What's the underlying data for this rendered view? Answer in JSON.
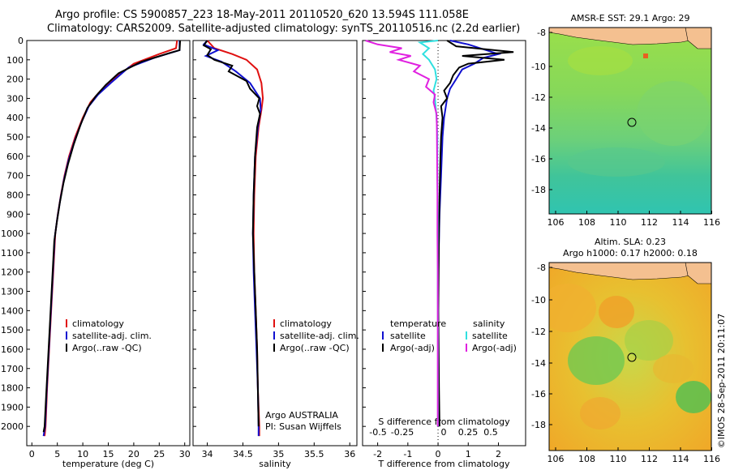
{
  "header": {
    "line1": "Argo profile: CS 5900857_223 18-May-2011 20110520_620 13.594S 111.058E",
    "line2": "Climatology: CARS2009. Satellite-adjusted climatology: synTS_20110516.nc (2.2d earlier)"
  },
  "colors": {
    "climatology": "#e01010",
    "satellite": "#1010d0",
    "argo": "#000000",
    "sal_sat": "#30e0e0",
    "sal_argo": "#e020e0"
  },
  "chart_data": [
    {
      "type": "line",
      "name": "temperature-profile",
      "xlabel": "temperature (deg C)",
      "ylabel": "",
      "xlim": [
        -1,
        31
      ],
      "ylim": [
        2100,
        0
      ],
      "xticks": [
        0,
        5,
        10,
        15,
        20,
        25,
        30
      ],
      "yticks": [
        0,
        100,
        200,
        300,
        400,
        500,
        600,
        700,
        800,
        900,
        1000,
        1100,
        1200,
        1300,
        1400,
        1500,
        1600,
        1700,
        1800,
        1900,
        2000
      ],
      "legend": [
        "climatology",
        "satellite-adj. clim.",
        "Argo(..raw -QC)"
      ],
      "series": [
        {
          "name": "climatology",
          "points": [
            [
              28.5,
              0
            ],
            [
              28.3,
              40
            ],
            [
              25,
              70
            ],
            [
              20,
              120
            ],
            [
              16,
              200
            ],
            [
              13.5,
              260
            ],
            [
              11.5,
              320
            ],
            [
              10,
              400
            ],
            [
              8.5,
              500
            ],
            [
              7.3,
              600
            ],
            [
              6.4,
              700
            ],
            [
              5.7,
              800
            ],
            [
              5.1,
              900
            ],
            [
              4.6,
              1000
            ],
            [
              4.2,
              1200
            ],
            [
              3.8,
              1400
            ],
            [
              3.4,
              1600
            ],
            [
              3,
              1800
            ],
            [
              2.7,
              2000
            ],
            [
              2.5,
              2050
            ]
          ]
        },
        {
          "name": "satellite",
          "points": [
            [
              29.0,
              0
            ],
            [
              29.0,
              50
            ],
            [
              24,
              90
            ],
            [
              19,
              140
            ],
            [
              15.5,
              220
            ],
            [
              13,
              280
            ],
            [
              11.2,
              340
            ],
            [
              9.8,
              420
            ],
            [
              8.4,
              520
            ],
            [
              7.2,
              620
            ],
            [
              6.3,
              720
            ],
            [
              5.6,
              820
            ],
            [
              5.0,
              920
            ],
            [
              4.5,
              1020
            ],
            [
              4.1,
              1220
            ],
            [
              3.7,
              1420
            ],
            [
              3.3,
              1620
            ],
            [
              2.9,
              1820
            ],
            [
              2.6,
              2000
            ],
            [
              2.3,
              2050
            ]
          ]
        },
        {
          "name": "argo",
          "points": [
            [
              29.1,
              0
            ],
            [
              29.0,
              50
            ],
            [
              27,
              65
            ],
            [
              21.5,
              110
            ],
            [
              17,
              170
            ],
            [
              14.5,
              230
            ],
            [
              12.5,
              290
            ],
            [
              10.9,
              350
            ],
            [
              9.5,
              440
            ],
            [
              8.2,
              540
            ],
            [
              7.1,
              640
            ],
            [
              6.2,
              740
            ],
            [
              5.5,
              840
            ],
            [
              4.9,
              940
            ],
            [
              4.4,
              1040
            ],
            [
              4.0,
              1240
            ],
            [
              3.6,
              1440
            ],
            [
              3.2,
              1640
            ],
            [
              2.8,
              1840
            ],
            [
              2.5,
              2000
            ],
            [
              2.3,
              2030
            ]
          ]
        }
      ]
    },
    {
      "type": "line",
      "name": "salinity-profile",
      "xlabel": "salinity",
      "ylabel": "",
      "xlim": [
        33.8,
        36.1
      ],
      "ylim": [
        2100,
        0
      ],
      "xticks": [
        34,
        34.5,
        35,
        35.5,
        36
      ],
      "legend": [
        "climatology",
        "satellite-adj. clim.",
        "Argo(..raw -QC)"
      ],
      "annotation": [
        "Argo AUSTRALIA",
        "PI: Susan Wijffels"
      ],
      "series": [
        {
          "name": "climatology",
          "points": [
            [
              34.0,
              0
            ],
            [
              34.1,
              40
            ],
            [
              34.35,
              70
            ],
            [
              34.55,
              100
            ],
            [
              34.7,
              150
            ],
            [
              34.76,
              220
            ],
            [
              34.78,
              300
            ],
            [
              34.76,
              360
            ],
            [
              34.72,
              450
            ],
            [
              34.68,
              600
            ],
            [
              34.66,
              800
            ],
            [
              34.65,
              1000
            ],
            [
              34.66,
              1200
            ],
            [
              34.68,
              1400
            ],
            [
              34.7,
              1600
            ],
            [
              34.71,
              1800
            ],
            [
              34.73,
              2000
            ],
            [
              34.73,
              2050
            ]
          ]
        },
        {
          "name": "satellite",
          "points": [
            [
              34.0,
              0
            ],
            [
              33.95,
              20
            ],
            [
              34.15,
              50
            ],
            [
              33.98,
              80
            ],
            [
              34.2,
              110
            ],
            [
              34.4,
              160
            ],
            [
              34.6,
              220
            ],
            [
              34.74,
              300
            ],
            [
              34.75,
              360
            ],
            [
              34.71,
              450
            ],
            [
              34.67,
              600
            ],
            [
              34.65,
              800
            ],
            [
              34.64,
              1000
            ],
            [
              34.65,
              1200
            ],
            [
              34.67,
              1400
            ],
            [
              34.69,
              1600
            ],
            [
              34.71,
              1800
            ],
            [
              34.72,
              2000
            ],
            [
              34.72,
              2050
            ]
          ]
        },
        {
          "name": "argo",
          "points": [
            [
              34.0,
              0
            ],
            [
              33.95,
              25
            ],
            [
              34.05,
              45
            ],
            [
              34.0,
              75
            ],
            [
              34.1,
              100
            ],
            [
              34.35,
              130
            ],
            [
              34.3,
              160
            ],
            [
              34.55,
              210
            ],
            [
              34.6,
              250
            ],
            [
              34.73,
              300
            ],
            [
              34.7,
              340
            ],
            [
              34.74,
              380
            ],
            [
              34.7,
              450
            ],
            [
              34.67,
              600
            ],
            [
              34.65,
              800
            ],
            [
              34.64,
              1000
            ],
            [
              34.66,
              1200
            ],
            [
              34.68,
              1400
            ],
            [
              34.7,
              1600
            ],
            [
              34.71,
              1800
            ],
            [
              34.72,
              2000
            ]
          ]
        }
      ]
    },
    {
      "type": "line",
      "name": "difference-profile",
      "xlabel": "T difference from climatology",
      "top_xlabel": "S difference from climatology",
      "xlim": [
        -2.5,
        2.9
      ],
      "ylim": [
        2100,
        0
      ],
      "xticks": [
        -2,
        -1,
        0,
        1,
        2
      ],
      "top_xticks": [
        -0.5,
        -0.25,
        0,
        0.25,
        0.5
      ],
      "top_xtick_labels": [
        "-0.5",
        "-0.25",
        "0",
        "0.25",
        "0.5"
      ],
      "legend_temperature": [
        "temperature",
        "satellite",
        "Argo(-adj)"
      ],
      "legend_salinity": [
        "salinity",
        "satellite",
        "Argo(-adj)"
      ],
      "series": [
        {
          "name": "temperature satellite",
          "points": [
            [
              0.4,
              0
            ],
            [
              1.0,
              20
            ],
            [
              2.0,
              70
            ],
            [
              1.5,
              90
            ],
            [
              1.2,
              120
            ],
            [
              0.8,
              150
            ],
            [
              0.6,
              200
            ],
            [
              0.4,
              250
            ],
            [
              0.3,
              300
            ],
            [
              0.2,
              400
            ],
            [
              0.15,
              500
            ],
            [
              0.1,
              700
            ],
            [
              0.05,
              900
            ],
            [
              0.02,
              1100
            ],
            [
              0.0,
              1300
            ],
            [
              0.0,
              1500
            ],
            [
              0.01,
              1700
            ],
            [
              0.02,
              1900
            ],
            [
              0.02,
              2000
            ]
          ]
        },
        {
          "name": "temperature argo",
          "points": [
            [
              0.3,
              0
            ],
            [
              0.6,
              30
            ],
            [
              2.5,
              60
            ],
            [
              0.8,
              80
            ],
            [
              2.2,
              100
            ],
            [
              1.0,
              120
            ],
            [
              0.7,
              140
            ],
            [
              0.5,
              180
            ],
            [
              0.4,
              220
            ],
            [
              0.2,
              260
            ],
            [
              0.3,
              300
            ],
            [
              0.1,
              340
            ],
            [
              0.15,
              400
            ],
            [
              0.1,
              500
            ],
            [
              0.08,
              600
            ],
            [
              0.05,
              800
            ],
            [
              0.03,
              1000
            ],
            [
              0.02,
              1200
            ],
            [
              0.01,
              1400
            ],
            [
              0.02,
              1600
            ],
            [
              0.03,
              1800
            ],
            [
              0.05,
              2000
            ]
          ]
        },
        {
          "name": "salinity satellite",
          "points": [
            [
              0.0,
              0
            ],
            [
              -0.6,
              10
            ],
            [
              -0.3,
              40
            ],
            [
              -0.5,
              70
            ],
            [
              -0.3,
              100
            ],
            [
              -0.1,
              150
            ],
            [
              -0.05,
              200
            ],
            [
              -0.15,
              260
            ],
            [
              -0.1,
              300
            ],
            [
              -0.05,
              400
            ],
            [
              -0.02,
              500
            ],
            [
              -0.02,
              700
            ],
            [
              -0.01,
              900
            ],
            [
              -0.01,
              1100
            ],
            [
              -0.01,
              1300
            ],
            [
              -0.005,
              1500
            ],
            [
              -0.005,
              1700
            ],
            [
              -0.005,
              1900
            ],
            [
              -0.005,
              2000
            ]
          ]
        },
        {
          "name": "salinity argo",
          "points": [
            [
              -2.4,
              0
            ],
            [
              -2.0,
              20
            ],
            [
              -1.2,
              40
            ],
            [
              -1.6,
              60
            ],
            [
              -0.9,
              80
            ],
            [
              -1.3,
              100
            ],
            [
              -0.6,
              130
            ],
            [
              -0.8,
              160
            ],
            [
              -0.3,
              200
            ],
            [
              -0.4,
              240
            ],
            [
              -0.1,
              280
            ],
            [
              -0.15,
              320
            ],
            [
              -0.05,
              380
            ],
            [
              -0.04,
              450
            ],
            [
              -0.03,
              600
            ],
            [
              -0.02,
              800
            ],
            [
              -0.02,
              1000
            ],
            [
              -0.01,
              1200
            ],
            [
              -0.01,
              1500
            ],
            [
              -0.01,
              1800
            ],
            [
              -0.01,
              2000
            ]
          ]
        }
      ]
    }
  ],
  "maps": [
    {
      "name": "sst-map",
      "title": "AMSR-E SST: 29.1 Argo: 29",
      "xticks": [
        "106",
        "108",
        "110",
        "112",
        "114",
        "116"
      ],
      "yticks": [
        "-8",
        "-10",
        "-12",
        "-14",
        "-16",
        "-18"
      ]
    },
    {
      "name": "sla-map",
      "title1": "Altim. SLA: 0.23",
      "title2": "Argo h1000: 0.17 h2000: 0.18",
      "xticks": [
        "106",
        "108",
        "110",
        "112",
        "114",
        "116"
      ],
      "yticks": [
        "-8",
        "-10",
        "-12",
        "-14",
        "-16",
        "-18"
      ]
    }
  ],
  "footer": {
    "credit": "©IMOS 28-Sep-2011 20:11:07"
  }
}
